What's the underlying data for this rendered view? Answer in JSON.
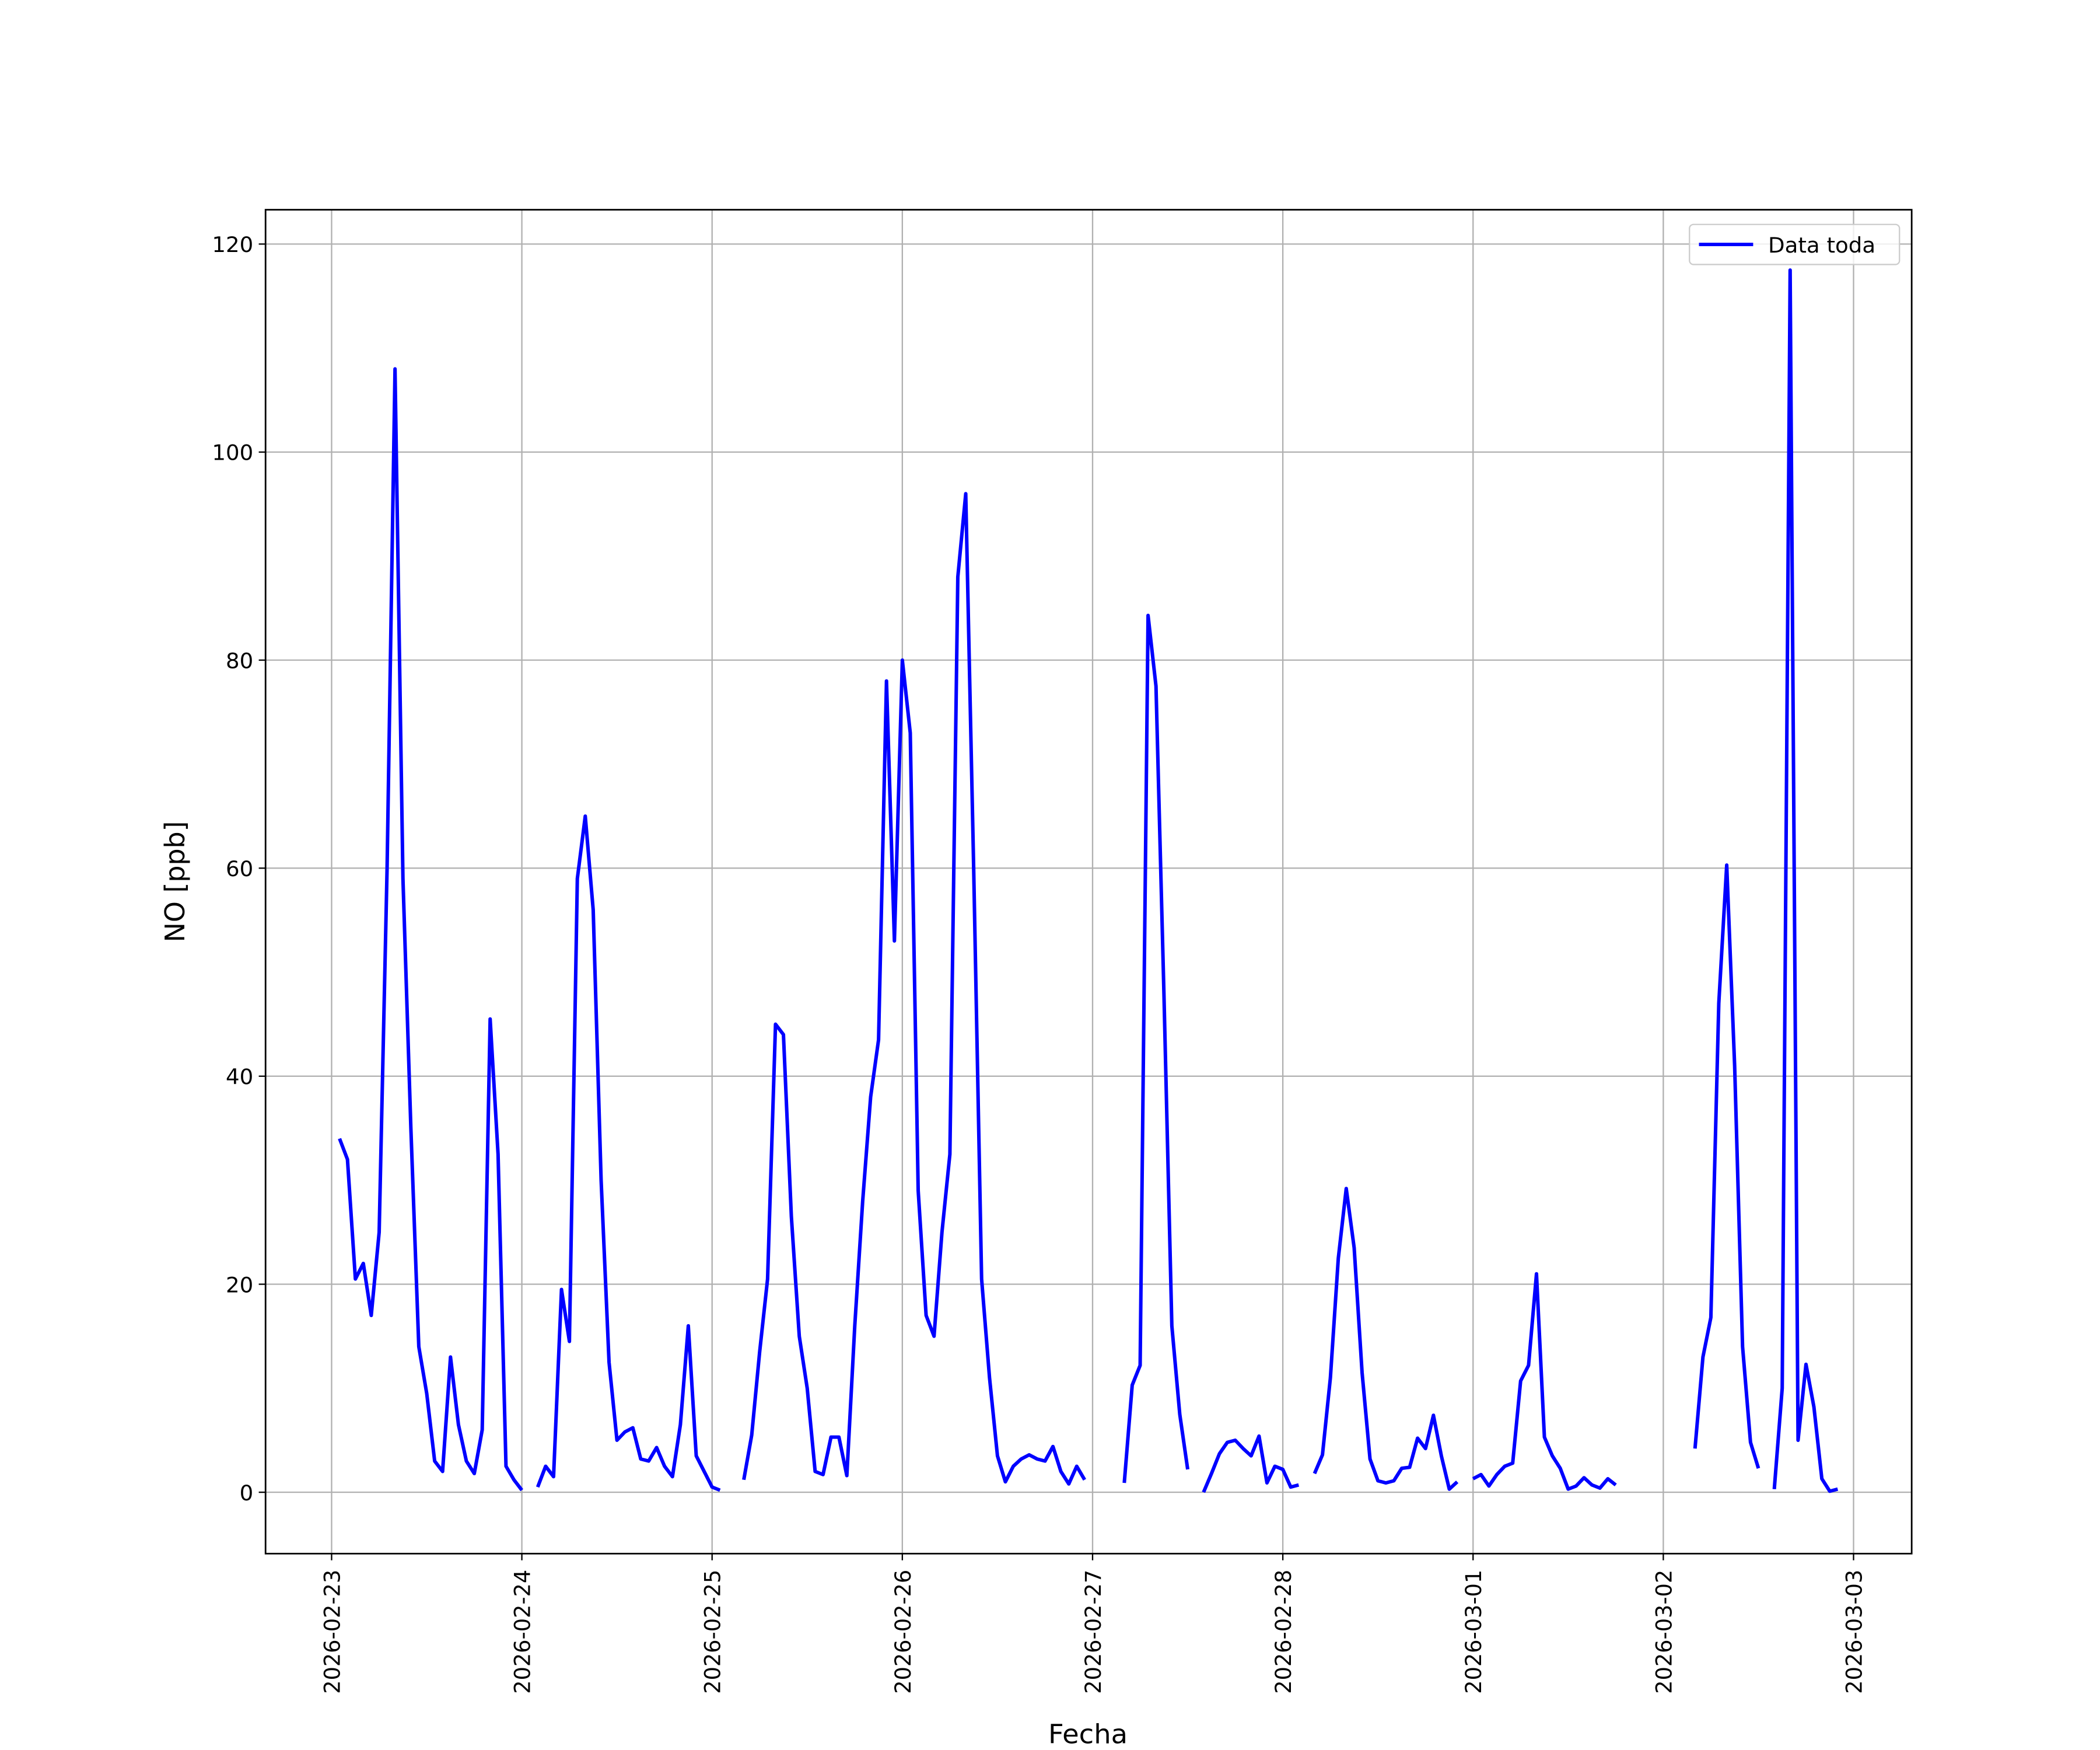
{
  "chart_data": {
    "type": "line",
    "x_label": "Fecha",
    "y_label": "NO [ppb]",
    "x": [
      "2026-02-23 01:00",
      "2026-02-23 02:00",
      "2026-02-23 03:00",
      "2026-02-23 04:00",
      "2026-02-23 05:00",
      "2026-02-23 06:00",
      "2026-02-23 07:00",
      "2026-02-23 08:00",
      "2026-02-23 09:00",
      "2026-02-23 10:00",
      "2026-02-23 11:00",
      "2026-02-23 12:00",
      "2026-02-23 13:00",
      "2026-02-23 14:00",
      "2026-02-23 15:00",
      "2026-02-23 16:00",
      "2026-02-23 17:00",
      "2026-02-23 18:00",
      "2026-02-23 19:00",
      "2026-02-23 20:00",
      "2026-02-23 21:00",
      "2026-02-23 22:00",
      "2026-02-23 23:00",
      "2026-02-24 00:00",
      "2026-02-24 01:00",
      "2026-02-24 02:00",
      "2026-02-24 03:00",
      "2026-02-24 04:00",
      "2026-02-24 05:00",
      "2026-02-24 06:00",
      "2026-02-24 07:00",
      "2026-02-24 08:00",
      "2026-02-24 09:00",
      "2026-02-24 10:00",
      "2026-02-24 11:00",
      "2026-02-24 12:00",
      "2026-02-24 13:00",
      "2026-02-24 14:00",
      "2026-02-24 15:00",
      "2026-02-24 16:00",
      "2026-02-24 17:00",
      "2026-02-24 18:00",
      "2026-02-24 19:00",
      "2026-02-24 20:00",
      "2026-02-24 21:00",
      "2026-02-24 22:00",
      "2026-02-24 23:00",
      "2026-02-25 00:00",
      "2026-02-25 01:00",
      "2026-02-25 02:00",
      "2026-02-25 03:00",
      "2026-02-25 04:00",
      "2026-02-25 05:00",
      "2026-02-25 06:00",
      "2026-02-25 07:00",
      "2026-02-25 08:00",
      "2026-02-25 09:00",
      "2026-02-25 10:00",
      "2026-02-25 11:00",
      "2026-02-25 12:00",
      "2026-02-25 13:00",
      "2026-02-25 14:00",
      "2026-02-25 15:00",
      "2026-02-25 16:00",
      "2026-02-25 17:00",
      "2026-02-25 18:00",
      "2026-02-25 19:00",
      "2026-02-25 20:00",
      "2026-02-25 21:00",
      "2026-02-25 22:00",
      "2026-02-25 23:00",
      "2026-02-26 00:00",
      "2026-02-26 01:00",
      "2026-02-26 02:00",
      "2026-02-26 03:00",
      "2026-02-26 04:00",
      "2026-02-26 05:00",
      "2026-02-26 06:00",
      "2026-02-26 07:00",
      "2026-02-26 08:00",
      "2026-02-26 09:00",
      "2026-02-26 10:00",
      "2026-02-26 11:00",
      "2026-02-26 12:00",
      "2026-02-26 13:00",
      "2026-02-26 14:00",
      "2026-02-26 15:00",
      "2026-02-26 16:00",
      "2026-02-26 17:00",
      "2026-02-26 18:00",
      "2026-02-26 19:00",
      "2026-02-26 20:00",
      "2026-02-26 21:00",
      "2026-02-26 22:00",
      "2026-02-26 23:00",
      "2026-02-27 00:00",
      "2026-02-27 01:00",
      "2026-02-27 02:00",
      "2026-02-27 03:00",
      "2026-02-27 04:00",
      "2026-02-27 05:00",
      "2026-02-27 06:00",
      "2026-02-27 07:00",
      "2026-02-27 08:00",
      "2026-02-27 09:00",
      "2026-02-27 10:00",
      "2026-02-27 11:00",
      "2026-02-27 12:00",
      "2026-02-27 13:00",
      "2026-02-27 14:00",
      "2026-02-27 15:00",
      "2026-02-27 16:00",
      "2026-02-27 17:00",
      "2026-02-27 18:00",
      "2026-02-27 19:00",
      "2026-02-27 20:00",
      "2026-02-27 21:00",
      "2026-02-27 22:00",
      "2026-02-27 23:00",
      "2026-02-28 00:00",
      "2026-02-28 01:00",
      "2026-02-28 02:00",
      "2026-02-28 03:00",
      "2026-02-28 04:00",
      "2026-02-28 05:00",
      "2026-02-28 06:00",
      "2026-02-28 07:00",
      "2026-02-28 08:00",
      "2026-02-28 09:00",
      "2026-02-28 10:00",
      "2026-02-28 11:00",
      "2026-02-28 12:00",
      "2026-02-28 13:00",
      "2026-02-28 14:00",
      "2026-02-28 15:00",
      "2026-02-28 16:00",
      "2026-02-28 17:00",
      "2026-02-28 18:00",
      "2026-02-28 19:00",
      "2026-02-28 20:00",
      "2026-02-28 21:00",
      "2026-02-28 22:00",
      "2026-02-28 23:00",
      "2026-03-01 00:00",
      "2026-03-01 01:00",
      "2026-03-01 02:00",
      "2026-03-01 03:00",
      "2026-03-01 04:00",
      "2026-03-01 05:00",
      "2026-03-01 06:00",
      "2026-03-01 07:00",
      "2026-03-01 08:00",
      "2026-03-01 09:00",
      "2026-03-01 10:00",
      "2026-03-01 11:00",
      "2026-03-01 12:00",
      "2026-03-01 13:00",
      "2026-03-01 14:00",
      "2026-03-01 15:00",
      "2026-03-01 16:00",
      "2026-03-01 17:00",
      "2026-03-01 18:00",
      "2026-03-01 19:00",
      "2026-03-01 20:00",
      "2026-03-01 21:00",
      "2026-03-01 22:00",
      "2026-03-01 23:00",
      "2026-03-02 00:00",
      "2026-03-02 01:00",
      "2026-03-02 02:00",
      "2026-03-02 03:00",
      "2026-03-02 04:00",
      "2026-03-02 05:00",
      "2026-03-02 06:00",
      "2026-03-02 07:00",
      "2026-03-02 08:00",
      "2026-03-02 09:00",
      "2026-03-02 10:00",
      "2026-03-02 11:00",
      "2026-03-02 12:00",
      "2026-03-02 13:00",
      "2026-03-02 14:00",
      "2026-03-02 15:00",
      "2026-03-02 16:00",
      "2026-03-02 17:00",
      "2026-03-02 18:00",
      "2026-03-02 19:00",
      "2026-03-02 20:00",
      "2026-03-02 21:00",
      "2026-03-02 22:00"
    ],
    "series": [
      {
        "name": "Data toda",
        "color": "#0000ff",
        "values": [
          34,
          32,
          20.5,
          22,
          17,
          25,
          60,
          108,
          59,
          35,
          14,
          9.5,
          3,
          2,
          13,
          6.5,
          3,
          1.8,
          6,
          45.5,
          32.5,
          2.5,
          1.2,
          0.2,
          null,
          0.5,
          2.5,
          1.5,
          19.5,
          14.5,
          59,
          65,
          56,
          30,
          12.5,
          5,
          5.8,
          6.2,
          3.2,
          3,
          4.3,
          2.5,
          1.5,
          6.5,
          16,
          3.5,
          2,
          0.5,
          0.2,
          null,
          null,
          1.2,
          5.5,
          13.5,
          20.5,
          45,
          44,
          26.5,
          15,
          10,
          2,
          1.7,
          5.3,
          5.3,
          1.6,
          16,
          28,
          38,
          43.5,
          78,
          53,
          80,
          73,
          29,
          17,
          15,
          25,
          32.5,
          88,
          96,
          60,
          20.5,
          11,
          3.5,
          1,
          2.5,
          3.2,
          3.6,
          3.2,
          3,
          4.4,
          2,
          0.8,
          2.5,
          1.2,
          null,
          null,
          null,
          null,
          0.9,
          10.3,
          12.2,
          84.3,
          77.5,
          48,
          16,
          7.5,
          2.2,
          null,
          0,
          1.8,
          3.7,
          4.8,
          5,
          4.2,
          3.5,
          5.4,
          0.9,
          2.5,
          2.2,
          0.5,
          0.7,
          null,
          1.8,
          3.6,
          11,
          22.5,
          29.2,
          23.5,
          11.5,
          3.2,
          1.1,
          0.9,
          1.1,
          2.3,
          2.4,
          5.2,
          4.2,
          7.4,
          3.5,
          0.3,
          1,
          null,
          1.3,
          1.7,
          0.6,
          1.7,
          2.5,
          2.8,
          10.7,
          12.2,
          21,
          5.3,
          3.5,
          2.3,
          0.3,
          0.6,
          1.4,
          0.7,
          0.4,
          1.3,
          0.7,
          null,
          null,
          null,
          null,
          null,
          null,
          null,
          null,
          null,
          4.2,
          13,
          16.8,
          47,
          60.3,
          41,
          14,
          4.8,
          2.3,
          null,
          0.3,
          10,
          117.5,
          5,
          12.3,
          8.2,
          1.3,
          0.1,
          0.3
        ]
      }
    ],
    "xlim": [
      "2026-02-22 15:40",
      "2026-03-03 07:20"
    ],
    "xticks": [
      "2026-02-23",
      "2026-02-24",
      "2026-02-25",
      "2026-02-26",
      "2026-02-27",
      "2026-02-28",
      "2026-03-01",
      "2026-03-02",
      "2026-03-03"
    ],
    "ylim": [
      -5.9,
      123.3
    ],
    "yticks": [
      0,
      20,
      40,
      60,
      80,
      100,
      120
    ],
    "grid": true,
    "legend": "upper right"
  }
}
